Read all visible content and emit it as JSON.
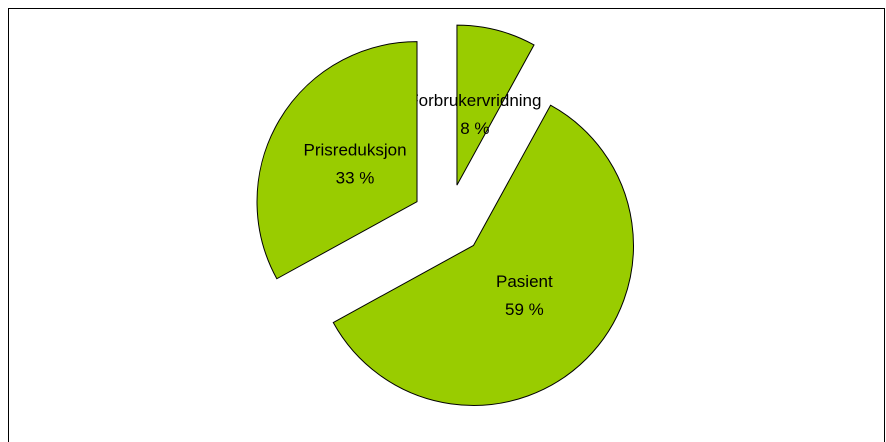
{
  "chart_data": {
    "type": "pie",
    "categories": [
      "Forbrukervridning",
      "Pasient",
      "Prisreduksjon"
    ],
    "values": [
      8,
      59,
      33
    ],
    "value_labels": [
      "8 %",
      "59 %",
      "33 %"
    ],
    "color": "#99cc00",
    "exploded": true
  }
}
